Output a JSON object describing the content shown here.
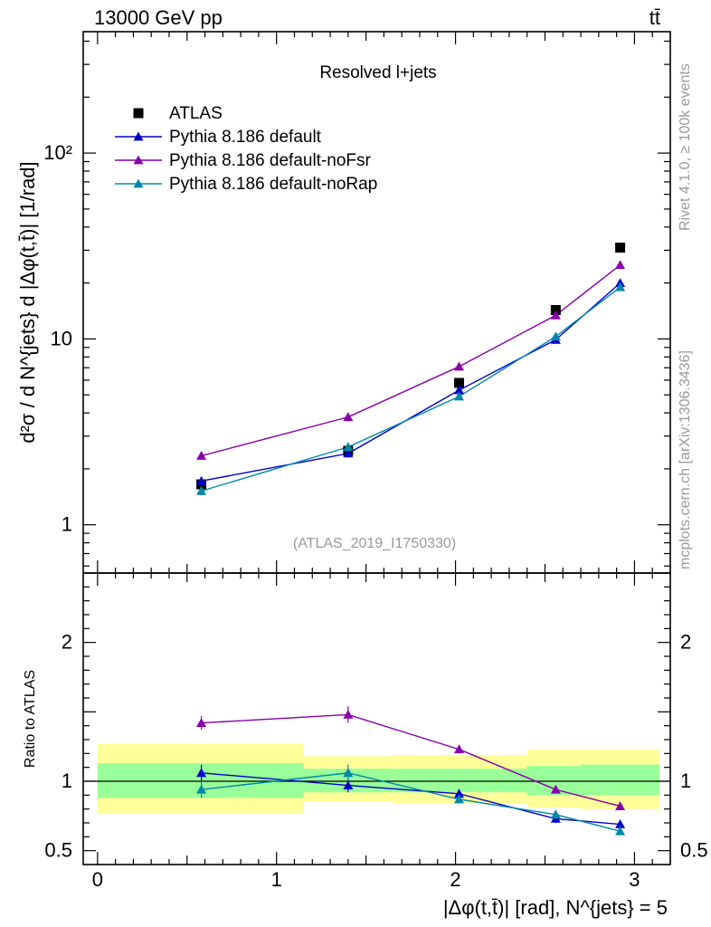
{
  "header": {
    "energy_label": "13000 GeV pp",
    "process_label": "tt̄"
  },
  "side_labels": {
    "rivet": "Rivet 4.1.0, ≥ 100k events",
    "mcplots": "mcplots.cern.ch [arXiv:1306.3436]"
  },
  "chart_data": [
    {
      "type": "line",
      "panel": "main",
      "title": "Resolved l+jets",
      "analysis_id": "(ATLAS_2019_I1750330)",
      "ylabel": "d²σ / d N^{jets} d |Δφ(t,t̄)| [1/rad]",
      "yscale": "log",
      "ylim": [
        0.55,
        450
      ],
      "xlim": [
        -0.08,
        3.2
      ],
      "yticks": [
        {
          "value": 1,
          "label": "1"
        },
        {
          "value": 10,
          "label": "10"
        },
        {
          "value": 100,
          "label": "10²"
        }
      ],
      "legend_position": "top-left",
      "series": [
        {
          "name": "ATLAS",
          "marker": "square",
          "color": "#000000",
          "x": [
            0.58,
            1.4,
            2.02,
            2.56,
            2.92
          ],
          "y": [
            1.65,
            2.5,
            5.8,
            14.3,
            31.0
          ],
          "yerr": [
            0.12,
            0.15,
            0.3,
            0.6,
            1.2
          ]
        },
        {
          "name": "Pythia 8.186 default",
          "marker": "triangle",
          "color": "#0000cc",
          "x": [
            0.58,
            1.4,
            2.02,
            2.56,
            2.92
          ],
          "y": [
            1.72,
            2.42,
            5.3,
            9.9,
            20.0
          ],
          "yerr": [
            0.1,
            0.12,
            0.2,
            0.3,
            0.4
          ]
        },
        {
          "name": "Pythia 8.186 default-noFsr",
          "marker": "triangle",
          "color": "#8800aa",
          "x": [
            0.58,
            1.4,
            2.02,
            2.56,
            2.92
          ],
          "y": [
            2.35,
            3.8,
            7.1,
            13.4,
            25.0
          ],
          "yerr": [
            0.08,
            0.2,
            0.2,
            0.4,
            0.5
          ]
        },
        {
          "name": "Pythia 8.186 default-noRap",
          "marker": "triangle",
          "color": "#0088aa",
          "x": [
            0.58,
            1.4,
            2.02,
            2.56,
            2.92
          ],
          "y": [
            1.52,
            2.62,
            4.9,
            10.3,
            19.0
          ],
          "yerr": [
            0.08,
            0.15,
            0.2,
            0.3,
            0.4
          ]
        }
      ]
    },
    {
      "type": "line",
      "panel": "ratio",
      "ylabel": "Ratio to ATLAS",
      "xlabel": "|Δφ(t,t̄)| [rad], N^{jets} = 5",
      "ylim": [
        0.4,
        2.5
      ],
      "xlim": [
        -0.08,
        3.2
      ],
      "yticks": [
        {
          "value": 0.5,
          "label": "0.5"
        },
        {
          "value": 1,
          "label": "1"
        },
        {
          "value": 2,
          "label": "2"
        }
      ],
      "xticks": [
        {
          "value": 0,
          "label": "0"
        },
        {
          "value": 1,
          "label": "1"
        },
        {
          "value": 2,
          "label": "2"
        },
        {
          "value": 3,
          "label": "3"
        }
      ],
      "bands": [
        {
          "x0": 0.0,
          "x1": 1.15,
          "yellow": [
            0.77,
            1.27
          ],
          "green": [
            0.88,
            1.13
          ]
        },
        {
          "x0": 1.15,
          "x1": 1.65,
          "yellow": [
            0.85,
            1.18
          ],
          "green": [
            0.92,
            1.09
          ]
        },
        {
          "x0": 1.65,
          "x1": 2.4,
          "yellow": [
            0.84,
            1.19
          ],
          "green": [
            0.92,
            1.09
          ]
        },
        {
          "x0": 2.4,
          "x1": 2.7,
          "yellow": [
            0.81,
            1.23
          ],
          "green": [
            0.9,
            1.11
          ]
        },
        {
          "x0": 2.7,
          "x1": 3.14,
          "yellow": [
            0.8,
            1.23
          ],
          "green": [
            0.9,
            1.12
          ]
        }
      ],
      "series": [
        {
          "name": "Pythia 8.186 default",
          "color": "#0000cc",
          "x": [
            0.58,
            1.4,
            2.02,
            2.56,
            2.92
          ],
          "y": [
            1.06,
            0.97,
            0.91,
            0.73,
            0.69
          ],
          "yerr": [
            0.06,
            0.05,
            0.03,
            0.03,
            0.02
          ]
        },
        {
          "name": "Pythia 8.186 default-noFsr",
          "color": "#8800aa",
          "x": [
            0.58,
            1.4,
            2.02,
            2.56,
            2.92
          ],
          "y": [
            1.42,
            1.48,
            1.23,
            0.94,
            0.82
          ],
          "yerr": [
            0.05,
            0.06,
            0.03,
            0.02,
            0.01
          ]
        },
        {
          "name": "Pythia 8.186 default-noRap",
          "color": "#0088aa",
          "x": [
            0.58,
            1.4,
            2.02,
            2.56,
            2.92
          ],
          "y": [
            0.94,
            1.06,
            0.87,
            0.76,
            0.64
          ],
          "yerr": [
            0.06,
            0.06,
            0.03,
            0.03,
            0.01
          ]
        }
      ]
    }
  ]
}
